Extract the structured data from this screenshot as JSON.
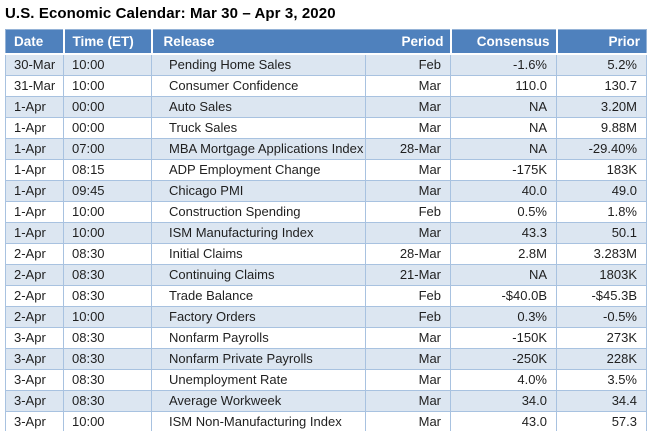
{
  "title": "U.S. Economic Calendar: Mar 30 – Apr 3, 2020",
  "colors": {
    "header_bg": "#4F81BD",
    "header_text": "#FFFFFF",
    "row_alt_bg": "#DCE6F1",
    "row_bg": "#FFFFFF",
    "grid_border": "#95B3D7",
    "body_text": "#1F1F1F"
  },
  "chart_data": {
    "type": "table",
    "title": "U.S. Economic Calendar: Mar 30 – Apr 3, 2020",
    "columns": [
      "Date",
      "Time (ET)",
      "Release",
      "Period",
      "Consensus",
      "Prior"
    ],
    "column_align": [
      "left",
      "left",
      "left",
      "right",
      "right",
      "right"
    ],
    "rows": [
      [
        "30-Mar",
        "10:00",
        "Pending Home Sales",
        "Feb",
        "-1.6%",
        "5.2%"
      ],
      [
        "31-Mar",
        "10:00",
        "Consumer Confidence",
        "Mar",
        "110.0",
        "130.7"
      ],
      [
        "1-Apr",
        "00:00",
        "Auto Sales",
        "Mar",
        "NA",
        "3.20M"
      ],
      [
        "1-Apr",
        "00:00",
        "Truck Sales",
        "Mar",
        "NA",
        "9.88M"
      ],
      [
        "1-Apr",
        "07:00",
        "MBA Mortgage Applications Index",
        "28-Mar",
        "NA",
        "-29.40%"
      ],
      [
        "1-Apr",
        "08:15",
        "ADP Employment Change",
        "Mar",
        "-175K",
        "183K"
      ],
      [
        "1-Apr",
        "09:45",
        "Chicago PMI",
        "Mar",
        "40.0",
        "49.0"
      ],
      [
        "1-Apr",
        "10:00",
        "Construction Spending",
        "Feb",
        "0.5%",
        "1.8%"
      ],
      [
        "1-Apr",
        "10:00",
        "ISM Manufacturing Index",
        "Mar",
        "43.3",
        "50.1"
      ],
      [
        "2-Apr",
        "08:30",
        "Initial Claims",
        "28-Mar",
        "2.8M",
        "3.283M"
      ],
      [
        "2-Apr",
        "08:30",
        "Continuing Claims",
        "21-Mar",
        "NA",
        "1803K"
      ],
      [
        "2-Apr",
        "08:30",
        "Trade Balance",
        "Feb",
        "-$40.0B",
        "-$45.3B"
      ],
      [
        "2-Apr",
        "10:00",
        "Factory Orders",
        "Feb",
        "0.3%",
        "-0.5%"
      ],
      [
        "3-Apr",
        "08:30",
        "Nonfarm Payrolls",
        "Mar",
        "-150K",
        "273K"
      ],
      [
        "3-Apr",
        "08:30",
        "Nonfarm Private Payrolls",
        "Mar",
        "-250K",
        "228K"
      ],
      [
        "3-Apr",
        "08:30",
        "Unemployment Rate",
        "Mar",
        "4.0%",
        "3.5%"
      ],
      [
        "3-Apr",
        "08:30",
        "Average Workweek",
        "Mar",
        "34.0",
        "34.4"
      ],
      [
        "3-Apr",
        "10:00",
        "ISM Non-Manufacturing Index",
        "Mar",
        "43.0",
        "57.3"
      ]
    ]
  }
}
